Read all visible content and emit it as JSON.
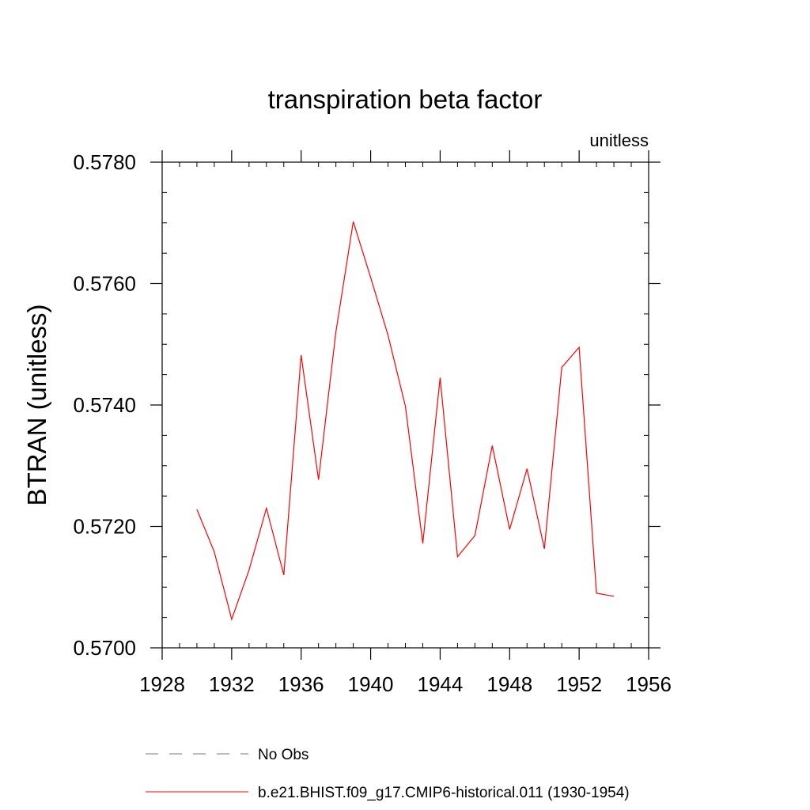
{
  "chart_data": {
    "type": "line",
    "title": "transpiration beta factor",
    "units_label": "unitless",
    "xlabel": "",
    "ylabel": "BTRAN  (unitless)",
    "xlim": [
      1928,
      1956
    ],
    "ylim": [
      0.57,
      0.578
    ],
    "x_ticks": [
      "1928",
      "1932",
      "1936",
      "1940",
      "1944",
      "1948",
      "1952",
      "1956"
    ],
    "y_ticks": [
      "0.5700",
      "0.5720",
      "0.5740",
      "0.5760",
      "0.5780"
    ],
    "grid": false,
    "legend_position": "bottom",
    "series": [
      {
        "name": "b.e21.BHIST.f09_g17.CMIP6-historical.011 (1930-1954)",
        "color": "#ff0000",
        "style": "solid",
        "x": [
          1930,
          1931,
          1932,
          1933,
          1934,
          1935,
          1936,
          1937,
          1938,
          1939,
          1940,
          1941,
          1942,
          1943,
          1944,
          1945,
          1946,
          1947,
          1948,
          1949,
          1950,
          1951,
          1952,
          1953,
          1954
        ],
        "y": [
          0.57228,
          0.57158,
          0.57047,
          0.57128,
          0.5723,
          0.5712,
          0.57482,
          0.57277,
          0.5752,
          0.57702,
          0.5761,
          0.57515,
          0.57398,
          0.57172,
          0.57445,
          0.5715,
          0.57185,
          0.57333,
          0.57195,
          0.57295,
          0.57163,
          0.57462,
          0.57495,
          0.5709,
          0.57085
        ]
      },
      {
        "name": "No Obs",
        "color": "#6f6fb0",
        "style": "dashed",
        "x": [],
        "y": []
      }
    ]
  }
}
